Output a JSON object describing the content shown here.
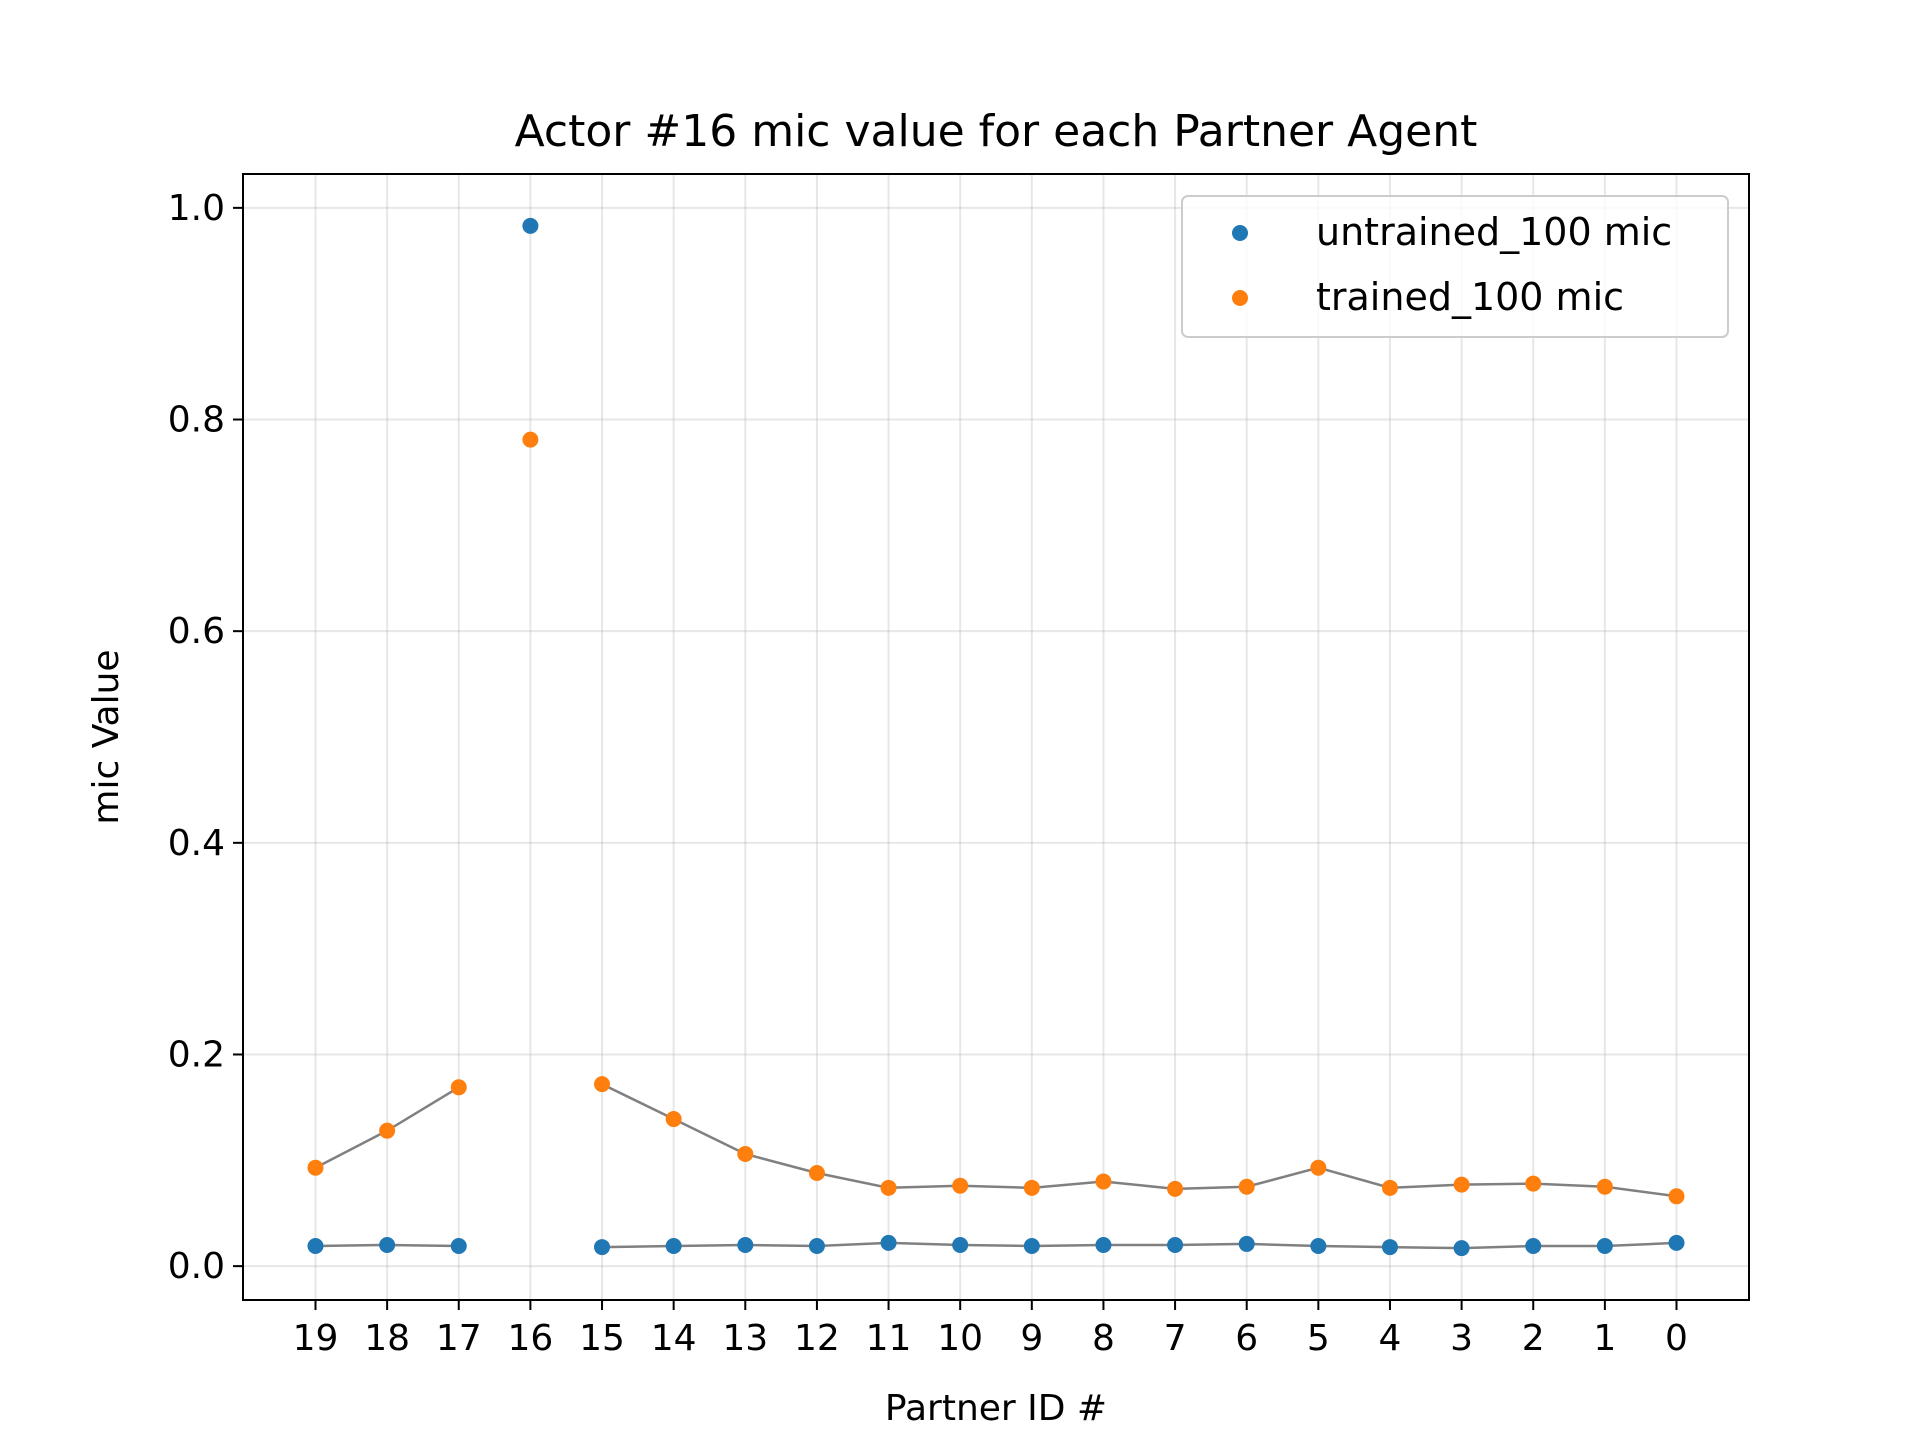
{
  "chart_data": {
    "type": "scatter",
    "title": "Actor #16 mic value for each Partner Agent",
    "xlabel": "Partner ID #",
    "ylabel": "mic Value",
    "categories": [
      "19",
      "18",
      "17",
      "16",
      "15",
      "14",
      "13",
      "12",
      "11",
      "10",
      "9",
      "8",
      "7",
      "6",
      "5",
      "4",
      "3",
      "2",
      "1",
      "0"
    ],
    "ylim": [
      -0.032,
      1.032
    ],
    "yticks": [
      "0.0",
      "0.2",
      "0.4",
      "0.6",
      "0.8",
      "1.0"
    ],
    "grid": true,
    "legend_position": "top-right",
    "series": [
      {
        "name": "untrained_100 mic",
        "color": "#1f77b4",
        "values": [
          0.019,
          0.02,
          0.019,
          0.983,
          0.018,
          0.019,
          0.02,
          0.019,
          0.022,
          0.02,
          0.019,
          0.02,
          0.02,
          0.021,
          0.019,
          0.018,
          0.017,
          0.019,
          0.019,
          0.022
        ]
      },
      {
        "name": "trained_100 mic",
        "color": "#ff7f0e",
        "values": [
          0.093,
          0.128,
          0.169,
          0.781,
          0.172,
          0.139,
          0.106,
          0.088,
          0.074,
          0.076,
          0.074,
          0.08,
          0.073,
          0.075,
          0.093,
          0.074,
          0.077,
          0.078,
          0.075,
          0.066
        ]
      }
    ],
    "connector_color": "#808080",
    "connector_skip_category": "16"
  }
}
